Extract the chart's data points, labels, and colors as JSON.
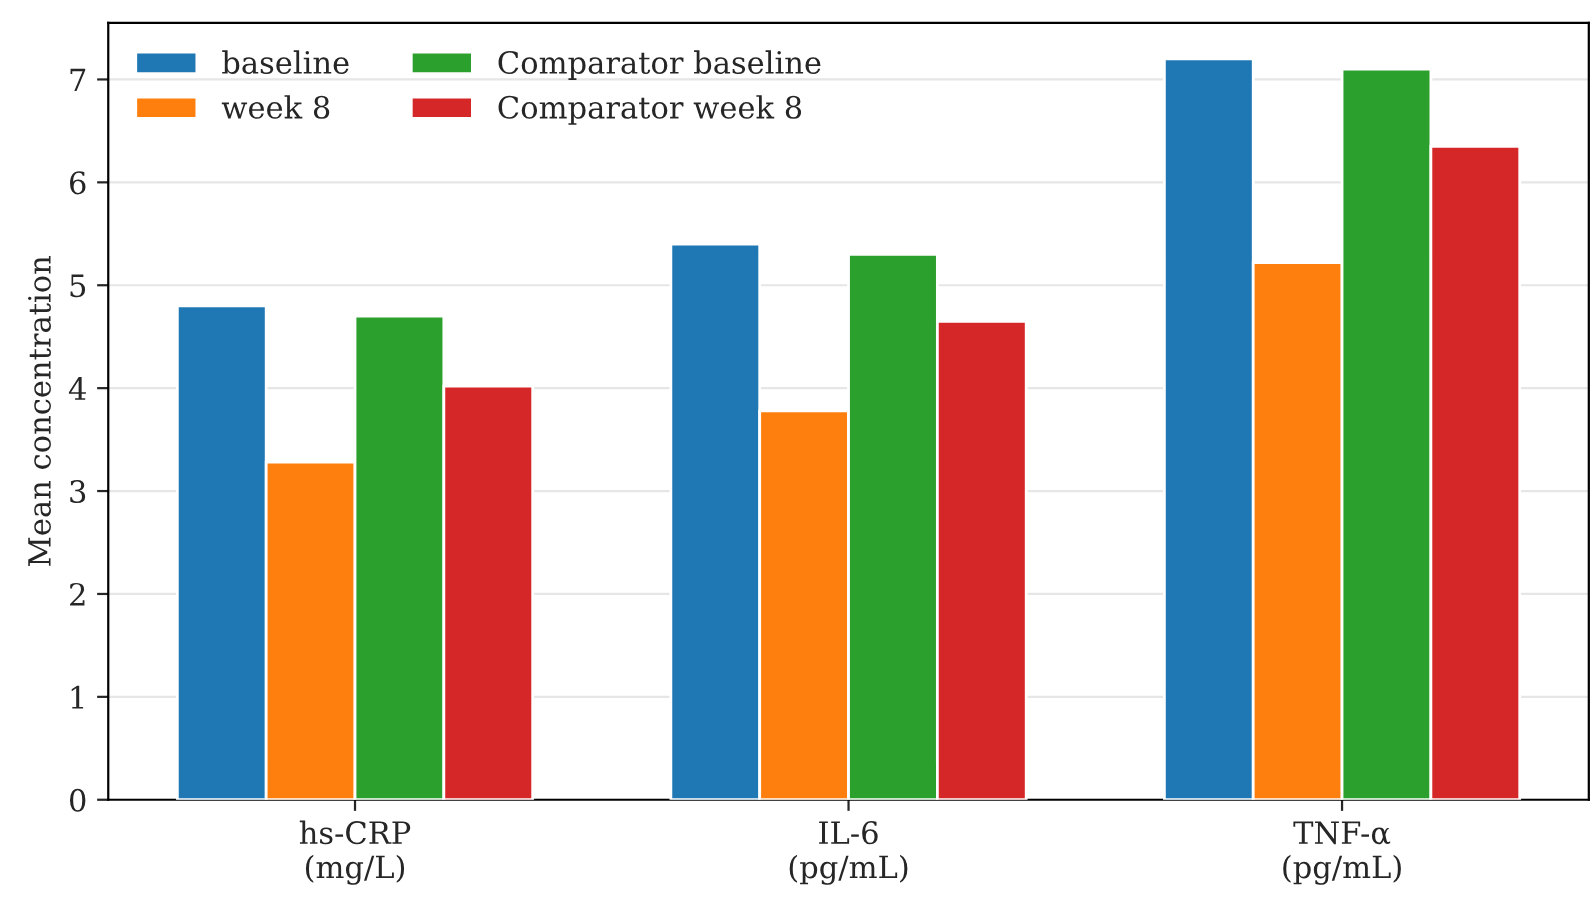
{
  "chart_data": {
    "type": "bar",
    "ylabel": "Mean concentration",
    "categories": [
      "hs-CRP\n(mg/L)",
      "IL-6\n(pg/mL)",
      "TNF-α\n(pg/mL)"
    ],
    "series": [
      {
        "name": "baseline",
        "color": "#1f77b4",
        "values": [
          4.8,
          5.4,
          7.2
        ]
      },
      {
        "name": "week 8",
        "color": "#ff7f0e",
        "values": [
          3.28,
          3.78,
          5.22
        ]
      },
      {
        "name": "Comparator baseline",
        "color": "#2ca02c",
        "values": [
          4.7,
          5.3,
          7.1
        ]
      },
      {
        "name": "Comparator week 8",
        "color": "#d62728",
        "values": [
          4.02,
          4.65,
          6.35
        ]
      }
    ],
    "ylim": [
      0,
      7.55
    ],
    "yticks": [
      0,
      1,
      2,
      3,
      4,
      5,
      6,
      7
    ],
    "grid": "y",
    "legend": "top left"
  }
}
